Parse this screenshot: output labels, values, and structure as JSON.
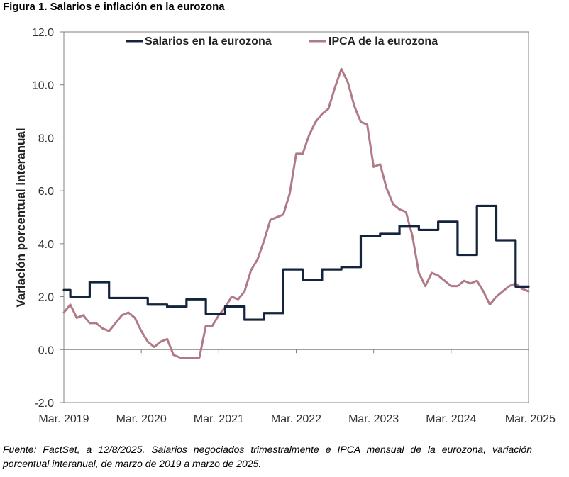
{
  "figure": {
    "title": "Figura 1. Salarios e inflación en la eurozona",
    "source": "Fuente: FactSet, a 12/8/2025. Salarios negociados trimestralmente e IPCA mensual de la eurozona, variación porcentual interanual, de marzo de 2019 a marzo de 2025."
  },
  "colors": {
    "wages": "#14243d",
    "hicp": "#b07a86",
    "axis": "#808080"
  },
  "chart_data": {
    "type": "line",
    "title": "Figura 1. Salarios e inflación en la eurozona",
    "xlabel": "",
    "ylabel": "Variación porcentual interanual",
    "ylim": [
      -2.0,
      12.0
    ],
    "yticks": [
      -2.0,
      0.0,
      2.0,
      4.0,
      6.0,
      8.0,
      10.0,
      12.0
    ],
    "ytick_labels": [
      "-2.0",
      "0.0",
      "2.0",
      "4.0",
      "6.0",
      "8.0",
      "10.0",
      "12.0"
    ],
    "xlim": [
      0,
      72
    ],
    "xticks": [
      0,
      12,
      24,
      36,
      48,
      60,
      72
    ],
    "xtick_labels": [
      "Mar. 2019",
      "Mar. 2020",
      "Mar. 2021",
      "Mar. 2022",
      "Mar. 2023",
      "Mar. 2024",
      "Mar. 2025"
    ],
    "x_unit": "months since March 2019",
    "legend": "top",
    "series": [
      {
        "name": "Salarios en la eurozona",
        "x": [
          0,
          1,
          1,
          3,
          3,
          4,
          4,
          6,
          6,
          7,
          7,
          9,
          9,
          10,
          10,
          12,
          12,
          13,
          13,
          15,
          15,
          16,
          16,
          18,
          18,
          19,
          19,
          21,
          21,
          22,
          22,
          24,
          24,
          25,
          25,
          27,
          27,
          28,
          28,
          30,
          30,
          31,
          31,
          33,
          33,
          34,
          34,
          36,
          36,
          37,
          37,
          39,
          39,
          40,
          40,
          42,
          42,
          43,
          43,
          45,
          45,
          46,
          46,
          48,
          48,
          49,
          49,
          51,
          51,
          52,
          52,
          54,
          54,
          55,
          55,
          57,
          57,
          58,
          58,
          60,
          60,
          61,
          61,
          63,
          63,
          64,
          64,
          66,
          66,
          67,
          67,
          69,
          69,
          70,
          70,
          72
        ],
        "values": [
          2.25,
          2.25,
          2.0,
          2.0,
          2.0,
          2.0,
          2.55,
          2.55,
          2.55,
          2.55,
          1.95,
          1.95,
          1.95,
          1.95,
          1.95,
          1.95,
          1.95,
          1.95,
          1.7,
          1.7,
          1.7,
          1.7,
          1.62,
          1.62,
          1.62,
          1.62,
          1.9,
          1.9,
          1.9,
          1.9,
          1.35,
          1.35,
          1.35,
          1.35,
          1.63,
          1.63,
          1.63,
          1.63,
          1.13,
          1.13,
          1.13,
          1.13,
          1.38,
          1.38,
          1.38,
          1.38,
          3.03,
          3.03,
          3.03,
          3.03,
          2.63,
          2.63,
          2.63,
          2.63,
          3.03,
          3.03,
          3.03,
          3.03,
          3.12,
          3.12,
          3.12,
          3.12,
          4.3,
          4.3,
          4.3,
          4.3,
          4.37,
          4.37,
          4.37,
          4.37,
          4.67,
          4.67,
          4.67,
          4.67,
          4.52,
          4.52,
          4.52,
          4.52,
          4.83,
          4.83,
          4.83,
          4.83,
          3.58,
          3.58,
          3.58,
          3.58,
          5.43,
          5.43,
          5.43,
          5.43,
          4.13,
          4.13,
          4.13,
          4.13,
          2.38,
          2.38
        ]
      },
      {
        "name": "IPCA de la eurozona",
        "x": [
          0,
          1,
          2,
          3,
          4,
          5,
          6,
          7,
          8,
          9,
          10,
          11,
          12,
          13,
          14,
          15,
          16,
          17,
          18,
          19,
          20,
          21,
          22,
          23,
          24,
          25,
          26,
          27,
          28,
          29,
          30,
          31,
          32,
          33,
          34,
          35,
          36,
          37,
          38,
          39,
          40,
          41,
          42,
          43,
          44,
          45,
          46,
          47,
          48,
          49,
          50,
          51,
          52,
          53,
          54,
          55,
          56,
          57,
          58,
          59,
          60,
          61,
          62,
          63,
          64,
          65,
          66,
          67,
          68,
          69,
          70,
          71,
          72
        ],
        "values": [
          1.4,
          1.7,
          1.2,
          1.3,
          1.0,
          1.0,
          0.8,
          0.7,
          1.0,
          1.3,
          1.4,
          1.2,
          0.7,
          0.3,
          0.1,
          0.3,
          0.4,
          -0.2,
          -0.3,
          -0.3,
          -0.3,
          -0.3,
          0.9,
          0.9,
          1.3,
          1.6,
          2.0,
          1.9,
          2.2,
          3.0,
          3.4,
          4.1,
          4.9,
          5.0,
          5.1,
          5.9,
          7.4,
          7.4,
          8.1,
          8.6,
          8.9,
          9.1,
          9.9,
          10.6,
          10.1,
          9.2,
          8.6,
          8.5,
          6.9,
          7.0,
          6.1,
          5.5,
          5.3,
          5.2,
          4.3,
          2.9,
          2.4,
          2.9,
          2.8,
          2.6,
          2.4,
          2.4,
          2.6,
          2.5,
          2.6,
          2.2,
          1.7,
          2.0,
          2.2,
          2.4,
          2.5,
          2.3,
          2.2
        ]
      }
    ]
  }
}
